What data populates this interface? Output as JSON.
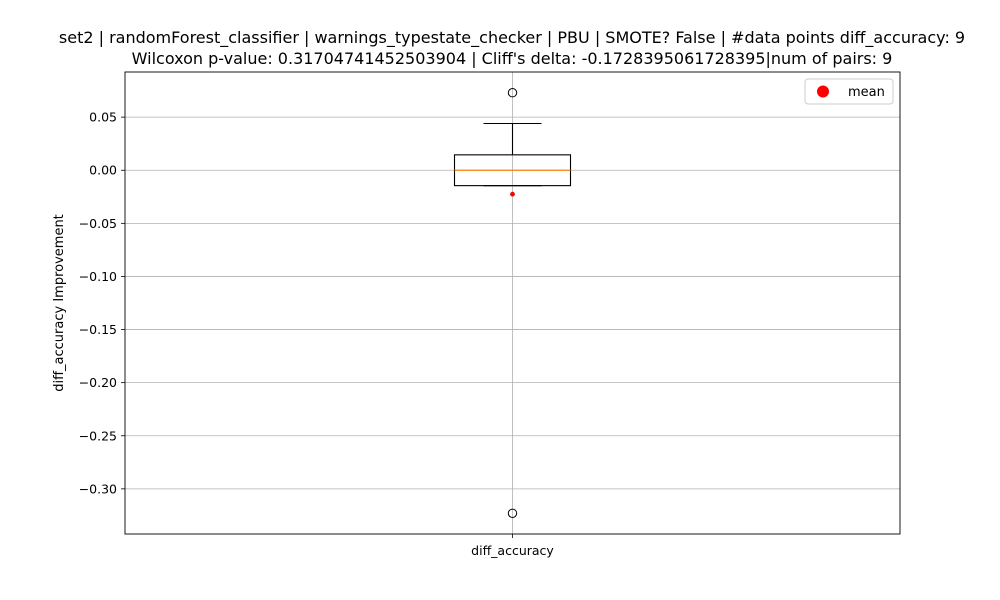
{
  "chart_data": {
    "type": "box",
    "title_lines": [
      "set2 | randomForest_classifier | warnings_typestate_checker | PBU | SMOTE? False | #data points diff_accuracy: 9",
      "Wilcoxon p-value: 0.31704741452503904 | Cliff's delta: -0.1728395061728395|num of pairs: 9"
    ],
    "xlabel": "",
    "ylabel": "diff_accuracy Improvement",
    "categories": [
      "diff_accuracy"
    ],
    "ylim": [
      -0.3425,
      0.0925
    ],
    "yticks": [
      0.05,
      0.0,
      -0.05,
      -0.1,
      -0.15,
      -0.2,
      -0.25,
      -0.3
    ],
    "ytick_labels": [
      "0.05",
      "0.00",
      "−0.05",
      "−0.10",
      "−0.15",
      "−0.20",
      "−0.25",
      "−0.30"
    ],
    "grid": true,
    "boxes": [
      {
        "category": "diff_accuracy",
        "whisker_low": -0.0145,
        "q1": -0.0145,
        "median": 0.0,
        "q3": 0.0145,
        "whisker_high": 0.044,
        "mean": -0.0225,
        "outliers": [
          0.073,
          -0.323
        ]
      }
    ],
    "legend": {
      "placement": "top-right",
      "entries": [
        {
          "label": "mean",
          "color": "#ff0000",
          "marker": "circle"
        }
      ]
    },
    "colors": {
      "box": "#000000",
      "median": "#ff7f0e",
      "mean": "#ff0000",
      "grid": "#b0b0b0"
    }
  }
}
